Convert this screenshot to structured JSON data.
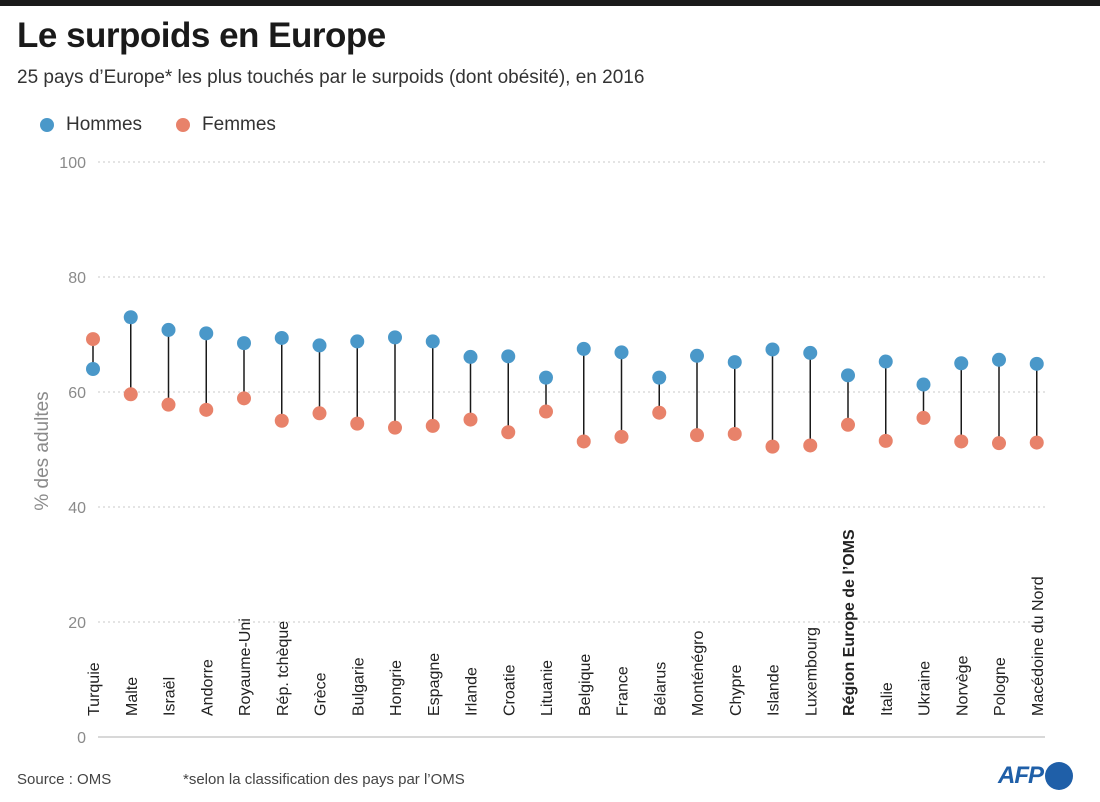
{
  "header": {
    "title": "Le surpoids en Europe",
    "subtitle": "25 pays d’Europe* les plus touchés par le surpoids (dont obésité), en 2016"
  },
  "legend": {
    "men": "Hommes",
    "women": "Femmes"
  },
  "colors": {
    "men": "#4a98c9",
    "women": "#e8826a",
    "connector": "#1a1a1a",
    "grid": "#c8c8c8",
    "axis_text": "#8a8a8a"
  },
  "chart_data": {
    "type": "dumbbell",
    "ylabel": "% des adultes",
    "ylim": [
      0,
      100
    ],
    "yticks": [
      0,
      20,
      40,
      60,
      80,
      100
    ],
    "grid": true,
    "legend_position": "top-left",
    "categories": [
      "Turquie",
      "Malte",
      "Israël",
      "Andorre",
      "Royaume-Uni",
      "Rép. tchèque",
      "Grèce",
      "Bulgarie",
      "Hongrie",
      "Espagne",
      "Irlande",
      "Croatie",
      "Lituanie",
      "Belgique",
      "France",
      "Bélarus",
      "Monténégro",
      "Chypre",
      "Islande",
      "Luxembourg",
      "Région Europe de l’OMS",
      "Italie",
      "Ukraine",
      "Norvège",
      "Pologne",
      "Macédoine du Nord"
    ],
    "highlight_category": "Région Europe de l’OMS",
    "series": [
      {
        "name": "Hommes",
        "values": [
          64.0,
          73.0,
          70.8,
          70.2,
          68.5,
          69.4,
          68.1,
          68.8,
          69.5,
          68.8,
          66.1,
          66.2,
          62.5,
          67.5,
          66.9,
          62.5,
          66.3,
          65.2,
          67.4,
          66.8,
          62.9,
          65.3,
          61.3,
          65.0,
          65.6,
          64.9
        ]
      },
      {
        "name": "Femmes",
        "values": [
          69.2,
          59.6,
          57.8,
          56.9,
          58.9,
          55.0,
          56.3,
          54.5,
          53.8,
          54.1,
          55.2,
          53.0,
          56.6,
          51.4,
          52.2,
          56.4,
          52.5,
          52.7,
          50.5,
          50.7,
          54.3,
          51.5,
          55.5,
          51.4,
          51.1,
          51.2
        ]
      }
    ]
  },
  "footer": {
    "source": "Source : OMS",
    "note": "*selon la classification des pays par l’OMS",
    "logo": "AFP"
  }
}
